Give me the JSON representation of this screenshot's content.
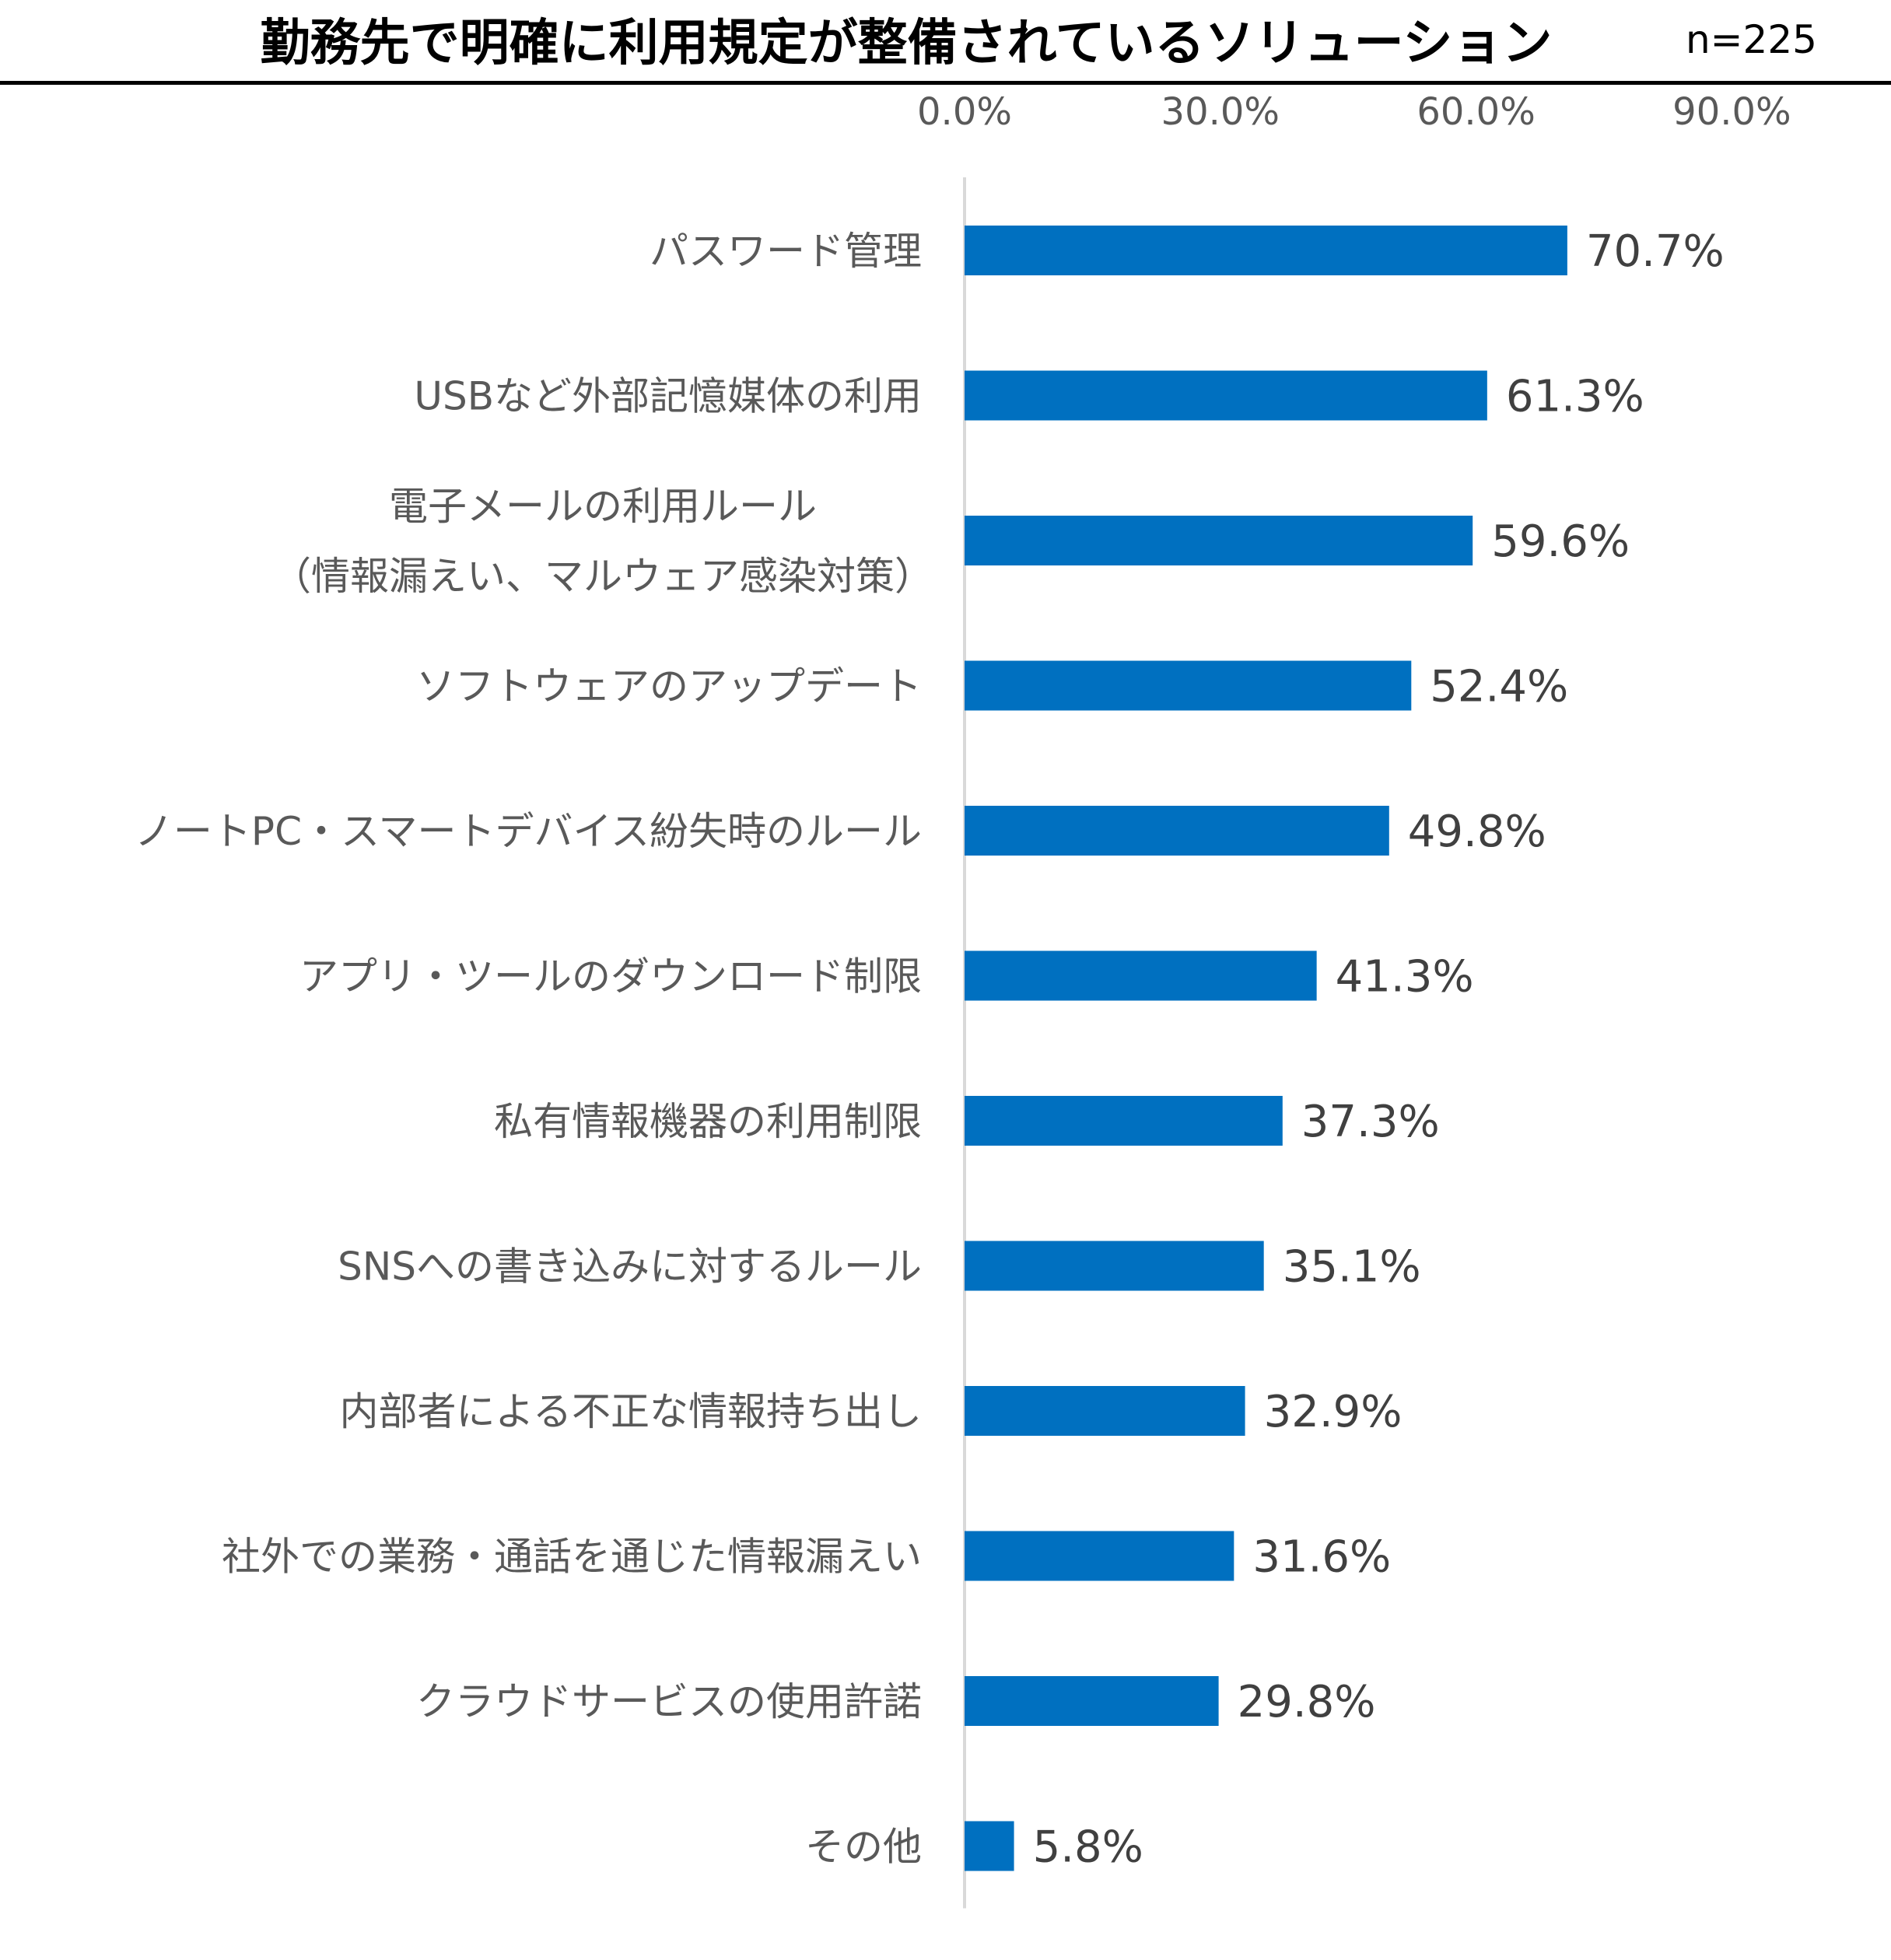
{
  "chart_data": {
    "type": "bar",
    "orientation": "horizontal",
    "title": "勤務先で明確に利用規定が整備されているソリューション",
    "sample_size": "n=225",
    "categories": [
      [
        "パスワード管理"
      ],
      [
        "USBなど外部記憶媒体の利用"
      ],
      [
        "電子メールの利用ルール",
        "（情報漏えい、マルウェア感染対策）"
      ],
      [
        "ソフトウェアのアップデート"
      ],
      [
        "ノートPC・スマートデバイス紛失時のルール"
      ],
      [
        "アプリ・ツールのダウンロード制限"
      ],
      [
        "私有情報機器の利用制限"
      ],
      [
        "SNSへの書き込みに対するルール"
      ],
      [
        "内部者による不正な情報持ち出し"
      ],
      [
        "社外での業務・通話を通じた情報漏えい"
      ],
      [
        "クラウドサービスの使用許諾"
      ],
      [
        "その他"
      ]
    ],
    "values": [
      70.7,
      61.3,
      59.6,
      52.4,
      49.8,
      41.3,
      37.3,
      35.1,
      32.9,
      31.6,
      29.8,
      5.8
    ],
    "value_labels": [
      "70.7%",
      "61.3%",
      "59.6%",
      "52.4%",
      "49.8%",
      "41.3%",
      "37.3%",
      "35.1%",
      "32.9%",
      "31.6%",
      "29.8%",
      "5.8%"
    ],
    "x_ticks": [
      0,
      30,
      60,
      90
    ],
    "x_tick_labels": [
      "0.0%",
      "30.0%",
      "60.0%",
      "90.0%"
    ],
    "xlim": [
      0,
      90
    ],
    "axis_position": "top",
    "grid": false,
    "legend": "none",
    "bar_color": "#0070C0"
  }
}
